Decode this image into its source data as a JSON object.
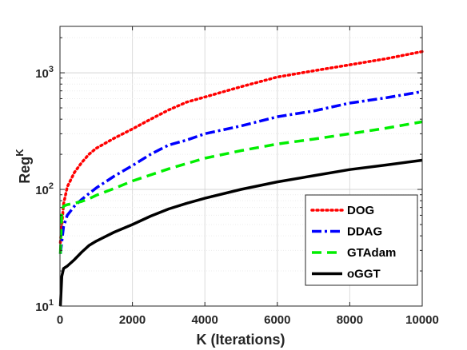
{
  "chart_data": {
    "type": "line",
    "title": "",
    "xlabel": "K (Iterations)",
    "ylabel": "Reg",
    "ylabel_superscript": "K",
    "xlim": [
      0,
      10000
    ],
    "ylim": [
      10,
      2500
    ],
    "y_scale": "log",
    "grid": true,
    "legend_position": "lower-right",
    "x_tick_labels": [
      "0",
      "2000",
      "4000",
      "6000",
      "8000",
      "10000"
    ],
    "x_tick_values": [
      0,
      2000,
      4000,
      6000,
      8000,
      10000
    ],
    "y_tick_values": [
      10,
      100,
      1000
    ],
    "y_tick_labels": [
      {
        "base": "10",
        "exp": "1"
      },
      {
        "base": "10",
        "exp": "2"
      },
      {
        "base": "10",
        "exp": "3"
      }
    ],
    "series": [
      {
        "name": "DOG",
        "color": "#ff0000",
        "dash": "dotted",
        "x": [
          10,
          100,
          200,
          400,
          600,
          800,
          1000,
          1500,
          2000,
          2500,
          3000,
          3500,
          4000,
          5000,
          6000,
          7000,
          8000,
          9000,
          10000
        ],
        "y": [
          35,
          75,
          105,
          140,
          170,
          200,
          225,
          275,
          330,
          400,
          480,
          560,
          620,
          760,
          920,
          1040,
          1170,
          1320,
          1520
        ]
      },
      {
        "name": "DDAG",
        "color": "#0000ff",
        "dash": "dashdot",
        "x": [
          10,
          100,
          200,
          400,
          600,
          800,
          1000,
          1500,
          2000,
          2500,
          3000,
          3500,
          4000,
          5000,
          6000,
          7000,
          8000,
          9000,
          10000
        ],
        "y": [
          28,
          48,
          60,
          72,
          82,
          92,
          103,
          130,
          160,
          200,
          240,
          265,
          300,
          350,
          420,
          470,
          550,
          610,
          690
        ]
      },
      {
        "name": "GTAdam",
        "color": "#00ee00",
        "dash": "dashed",
        "x": [
          10,
          50,
          100,
          200,
          400,
          600,
          800,
          1000,
          1500,
          2000,
          3000,
          4000,
          5000,
          6000,
          7000,
          8000,
          9000,
          10000
        ],
        "y": [
          28,
          65,
          72,
          74,
          76,
          79,
          83,
          89,
          102,
          118,
          150,
          185,
          215,
          245,
          270,
          300,
          335,
          380
        ]
      },
      {
        "name": "oGGT",
        "color": "#000000",
        "dash": "solid",
        "x": [
          10,
          50,
          100,
          200,
          400,
          600,
          800,
          1000,
          1500,
          2000,
          2500,
          3000,
          3500,
          4000,
          5000,
          6000,
          7000,
          8000,
          9000,
          10000
        ],
        "y": [
          10,
          18,
          21,
          22,
          25,
          29,
          33,
          36,
          43,
          50,
          59,
          68,
          76,
          84,
          100,
          116,
          131,
          148,
          162,
          178
        ]
      }
    ]
  }
}
